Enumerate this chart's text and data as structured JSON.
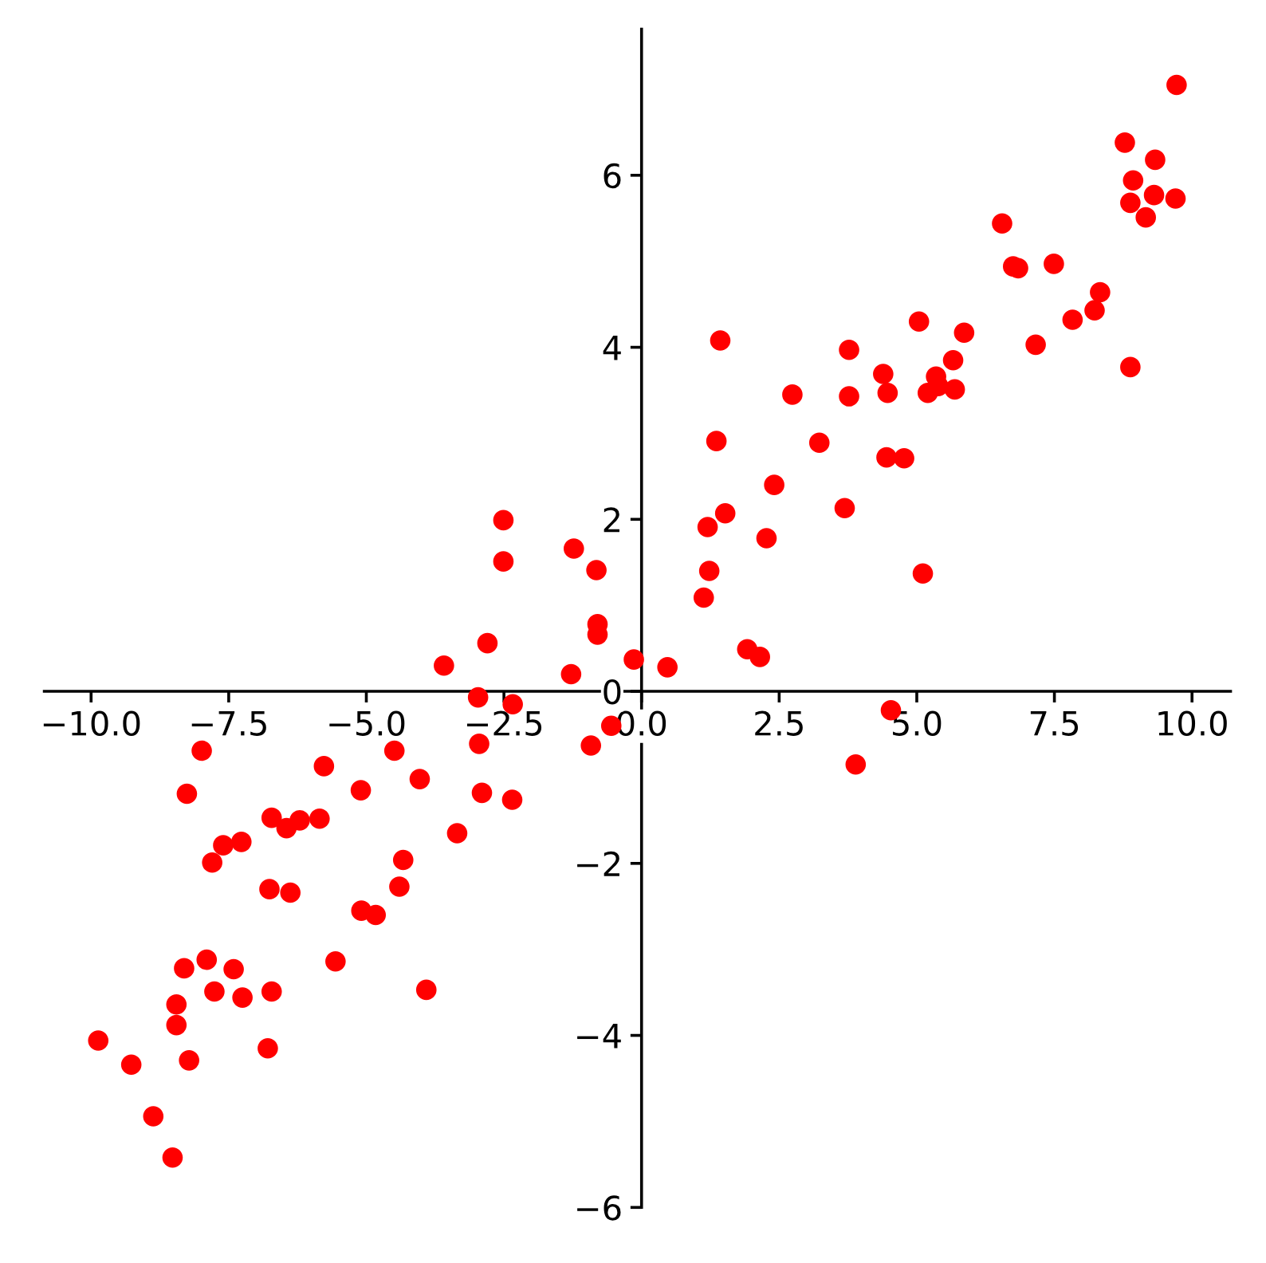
{
  "chart_data": {
    "type": "scatter",
    "color": "#ff0000",
    "marker": "circle",
    "grid": false,
    "legend": false,
    "x": [
      -2.51,
      -2.51,
      -1.23,
      -0.82,
      -0.8,
      -0.8,
      -2.8,
      -3.59,
      -1.28,
      -0.14,
      -2.97,
      -2.34,
      -0.55,
      -7.99,
      -4.49,
      -2.95,
      -0.92,
      -8.26,
      -5.77,
      -5.1,
      -4.03,
      -2.9,
      -2.35,
      -6.72,
      -6.45,
      -6.21,
      -5.85,
      -3.35,
      -7.6,
      -7.27,
      -7.8,
      -4.33,
      -6.76,
      -6.38,
      -4.4,
      -5.09,
      -4.83,
      -7.9,
      -8.31,
      -7.41,
      -5.56,
      -7.76,
      -7.25,
      -6.72,
      -3.91,
      -8.45,
      -8.45,
      -9.87,
      -9.27,
      -8.22,
      -6.79,
      -8.87,
      -8.52,
      0.47,
      1.92,
      2.15,
      1.13,
      1.23,
      1.2,
      1.52,
      2.27,
      2.41,
      1.36,
      1.43,
      2.74,
      3.23,
      3.69,
      3.77,
      3.77,
      4.39,
      4.47,
      4.45,
      4.77,
      5.11,
      5.04,
      5.2,
      5.35,
      5.39,
      5.69,
      5.66,
      5.86,
      6.55,
      6.75,
      6.84,
      7.49,
      7.16,
      7.83,
      8.23,
      8.33,
      8.88,
      8.78,
      8.93,
      8.88,
      9.16,
      9.31,
      9.33,
      9.7,
      9.72,
      4.53,
      3.89
    ],
    "values": [
      1.99,
      1.51,
      1.66,
      1.41,
      0.78,
      0.66,
      0.56,
      0.3,
      0.2,
      0.37,
      -0.07,
      -0.15,
      -0.4,
      -0.69,
      -0.69,
      -0.61,
      -0.63,
      -1.19,
      -0.87,
      -1.15,
      -1.02,
      -1.18,
      -1.26,
      -1.47,
      -1.59,
      -1.5,
      -1.48,
      -1.65,
      -1.79,
      -1.75,
      -1.99,
      -1.96,
      -2.3,
      -2.34,
      -2.27,
      -2.55,
      -2.6,
      -3.12,
      -3.22,
      -3.23,
      -3.14,
      -3.49,
      -3.56,
      -3.49,
      -3.47,
      -3.64,
      -3.88,
      -4.06,
      -4.34,
      -4.29,
      -4.15,
      -4.94,
      -5.42,
      0.28,
      0.49,
      0.4,
      1.09,
      1.4,
      1.91,
      2.07,
      1.78,
      2.4,
      2.91,
      4.08,
      3.45,
      2.89,
      2.13,
      3.97,
      3.43,
      3.69,
      3.47,
      2.72,
      2.71,
      1.37,
      4.3,
      3.47,
      3.66,
      3.55,
      3.51,
      3.85,
      4.17,
      5.44,
      4.94,
      4.92,
      4.97,
      4.03,
      4.32,
      4.43,
      4.64,
      3.77,
      6.38,
      5.94,
      5.68,
      5.51,
      5.77,
      6.18,
      5.73,
      7.05,
      -0.22,
      -0.85
    ],
    "xlim": [
      -10.85,
      10.7
    ],
    "ylim": [
      -6,
      7.7
    ],
    "xticks": [
      {
        "value": -10,
        "label": "−10.0"
      },
      {
        "value": -7.5,
        "label": "−7.5"
      },
      {
        "value": -5,
        "label": "−5.0"
      },
      {
        "value": -2.5,
        "label": "−2.5"
      },
      {
        "value": 0,
        "label": "0.0"
      },
      {
        "value": 2.5,
        "label": "2.5"
      },
      {
        "value": 5,
        "label": "5.0"
      },
      {
        "value": 7.5,
        "label": "7.5"
      },
      {
        "value": 10,
        "label": "10.0"
      }
    ],
    "yticks": [
      {
        "value": -6,
        "label": "−6"
      },
      {
        "value": -4,
        "label": "−4"
      },
      {
        "value": -2,
        "label": "−2"
      },
      0,
      2,
      4,
      6
    ]
  }
}
